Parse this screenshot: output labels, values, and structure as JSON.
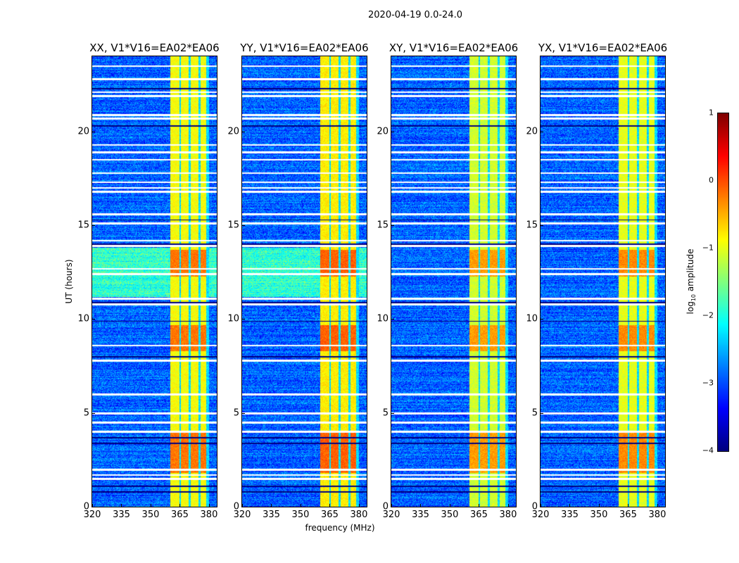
{
  "chart_data": {
    "type": "heatmap",
    "title": "2020-04-19 0.0-24.0",
    "xlabel": "frequency (MHz)",
    "ylabel": "UT (hours)",
    "xlim": [
      320,
      384
    ],
    "ylim": [
      0,
      24
    ],
    "xticks": [
      "320",
      "335",
      "350",
      "365",
      "380"
    ],
    "yticks": [
      "0",
      "5",
      "10",
      "15",
      "20"
    ],
    "panels": [
      {
        "title": "XX, V1*V16=EA02*EA06",
        "baseline": -2.9,
        "rfi_level": -0.9
      },
      {
        "title": "YY, V1*V16=EA02*EA06",
        "baseline": -2.9,
        "rfi_level": -0.8
      },
      {
        "title": "XY, V1*V16=EA02*EA06",
        "baseline": -2.9,
        "rfi_level": -1.1
      },
      {
        "title": "YX, V1*V16=EA02*EA06",
        "baseline": -2.9,
        "rfi_level": -1.0
      }
    ],
    "rfi_band_mhz": [
      360,
      380
    ],
    "rfi_channel_gaps_mhz": [
      365,
      370,
      375
    ],
    "strong_rfi_hours": [
      [
        1.8,
        4.0
      ],
      [
        8.3,
        9.7
      ],
      [
        12.3,
        13.7
      ]
    ],
    "elevated_baseline_hours": [
      [
        11.2,
        13.8
      ]
    ],
    "flagged_hours": [
      23.5,
      22.8,
      22.1,
      21.9,
      20.9,
      20.7,
      19.3,
      18.9,
      18.5,
      17.8,
      17.3,
      17.0,
      16.8,
      15.6,
      15.1,
      14.2,
      13.9,
      12.7,
      12.4,
      11.1,
      10.8,
      8.6,
      7.8,
      6.0,
      5.0,
      4.5,
      4.0,
      2.0,
      1.7,
      1.5
    ],
    "dark_hours": [
      22.3,
      20.3,
      15.3,
      14.0,
      10.9,
      9.9,
      8.0,
      3.7,
      3.4,
      1.1,
      0.8
    ],
    "colorbar": {
      "label_main": "log",
      "label_sub": "10",
      "label_rest": " amplitude",
      "range": [
        -4,
        1
      ],
      "colormap": "jet",
      "ticks": [
        "1",
        "0",
        "−1",
        "−2",
        "−3",
        "−4"
      ]
    }
  }
}
